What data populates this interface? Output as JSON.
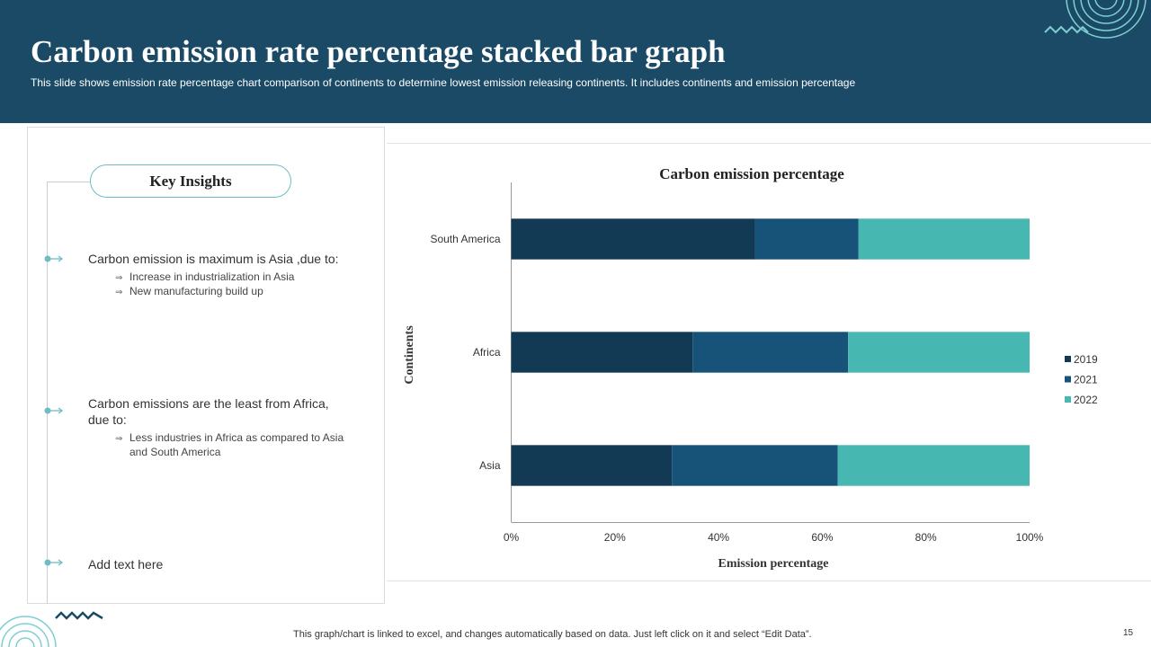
{
  "header": {
    "title": "Carbon emission  rate percentage stacked  bar graph",
    "subtitle": "This slide shows emission rate percentage chart comparison of continents to determine lowest emission releasing continents. It includes continents and emission percentage"
  },
  "insights": {
    "heading": "Key Insights",
    "points": [
      {
        "text": "Carbon emission is maximum is Asia ,due to:",
        "subs": [
          "Increase in industrialization in Asia",
          "New manufacturing  build up"
        ]
      },
      {
        "text": "Carbon emissions are the least from Africa, due to:",
        "subs": [
          "Less industries in Africa as compared to Asia and South America"
        ]
      },
      {
        "text": "Add text here",
        "subs": []
      }
    ]
  },
  "chart_data": {
    "type": "bar",
    "orientation": "horizontal",
    "stacked": "percent",
    "title": "Carbon emission percentage",
    "xlabel": "Emission percentage",
    "ylabel": "Continents",
    "categories": [
      "South America",
      "Africa",
      "Asia"
    ],
    "series": [
      {
        "name": "2019",
        "color": "#123a55",
        "values": [
          47,
          35,
          31
        ]
      },
      {
        "name": "2021",
        "color": "#175279",
        "values": [
          20,
          30,
          32
        ]
      },
      {
        "name": "2022",
        "color": "#47b7b1",
        "values": [
          33,
          35,
          37
        ]
      }
    ],
    "xlim": [
      0,
      100
    ],
    "xticks": [
      "0%",
      "20%",
      "40%",
      "60%",
      "80%",
      "100%"
    ],
    "legend_position": "right"
  },
  "footer": {
    "note": "This graph/chart is linked to excel,  and changes automatically based on data. Just left click on it and select “Edit Data”.",
    "page": "15"
  }
}
